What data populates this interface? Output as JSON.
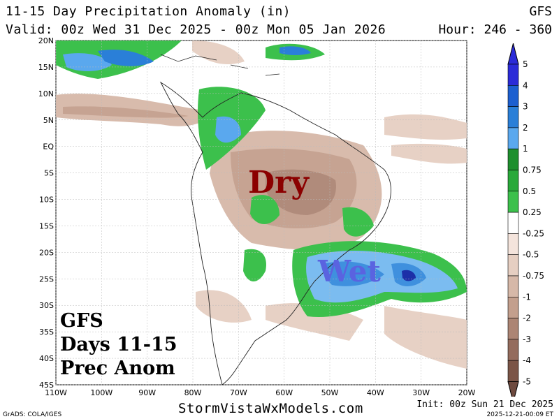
{
  "header": {
    "title": "11-15 Day Precipitation Anomaly (in)",
    "valid": "Valid: 00z Wed 31 Dec 2025 - 00z Mon 05 Jan 2026",
    "model": "GFS",
    "hours": "Hour: 246 - 360"
  },
  "map": {
    "lat_labels": [
      "20N",
      "15N",
      "10N",
      "5N",
      "EQ",
      "5S",
      "10S",
      "15S",
      "20S",
      "25S",
      "30S",
      "35S",
      "40S",
      "45S"
    ],
    "lon_labels": [
      "110W",
      "100W",
      "90W",
      "80W",
      "70W",
      "60W",
      "50W",
      "40W",
      "30W",
      "20W"
    ],
    "overlays": {
      "dry": "Dry",
      "wet": "Wet"
    },
    "box_lines": [
      "GFS",
      "Days 11-15",
      "Prec Anom"
    ],
    "colors": {
      "wet_light": "#7bbcf0",
      "wet_mid": "#3f90de",
      "wet_dark": "#1f5fc8",
      "wet_vdark": "#1c2fa8",
      "green_light": "#33c24a",
      "green_mid": "#22a53a",
      "dry_light": "#e4c6b4",
      "dry_mid": "#c9a58f",
      "dry_dark": "#a8826f"
    }
  },
  "colorbar": {
    "labels": [
      "5",
      "4",
      "3",
      "2",
      "1",
      "0.75",
      "0.5",
      "0.25",
      "-0.25",
      "-0.5",
      "-0.75",
      "-1",
      "-2",
      "-3",
      "-4",
      "-5"
    ],
    "colors": [
      "#2b2bd8",
      "#1c5fd0",
      "#2a7fd8",
      "#5aa8ee",
      "#1e8f2e",
      "#29a93a",
      "#3cc04c",
      "#ffffff",
      "#f4e4dc",
      "#e6cfc2",
      "#d6b8a8",
      "#c39f8d",
      "#ac8574",
      "#946c5d",
      "#7b5547"
    ],
    "top_color": "#2b2bd8",
    "bottom_color": "#6e4a3f"
  },
  "footer": {
    "left": "GrADS: COLA/IGES",
    "site": "StormVistaWxModels.com",
    "init": "Init: 00z Sun 21 Dec 2025",
    "stamp": "2025-12-21-00:09 ET"
  }
}
